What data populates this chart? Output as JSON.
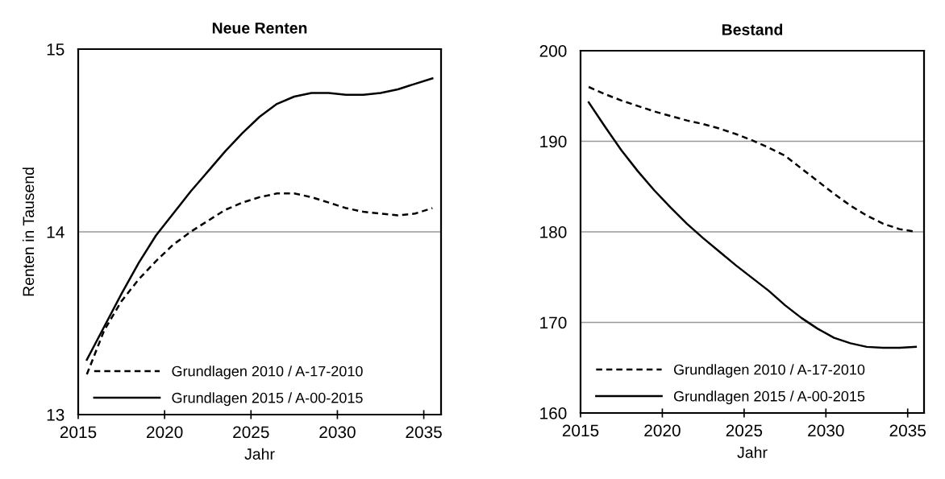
{
  "chart_data": [
    {
      "type": "line",
      "title": "Neue Renten",
      "xlabel": "Jahr",
      "ylabel": "Renten in Tausend",
      "x": [
        2015.5,
        2016.5,
        2017.5,
        2018.5,
        2019.5,
        2020.5,
        2021.5,
        2022.5,
        2023.5,
        2024.5,
        2025.5,
        2026.5,
        2027.5,
        2028.5,
        2029.5,
        2030.5,
        2031.5,
        2032.5,
        2033.5,
        2034.5,
        2035.5
      ],
      "series": [
        {
          "name": "Grundlagen 2010 / A-17-2010",
          "color": "#000000",
          "line_style": "dashed",
          "values": [
            13.22,
            13.46,
            13.62,
            13.74,
            13.84,
            13.93,
            14.0,
            14.06,
            14.12,
            14.16,
            14.19,
            14.21,
            14.21,
            14.19,
            14.16,
            14.13,
            14.11,
            14.1,
            14.09,
            14.1,
            14.13
          ]
        },
        {
          "name": "Grundlagen 2015 / A-00-2015",
          "color": "#000000",
          "line_style": "solid",
          "values": [
            13.3,
            13.48,
            13.66,
            13.83,
            13.98,
            14.1,
            14.22,
            14.33,
            14.44,
            14.54,
            14.63,
            14.7,
            14.74,
            14.76,
            14.76,
            14.75,
            14.75,
            14.76,
            14.78,
            14.81,
            14.84
          ]
        }
      ],
      "xlim": [
        2015,
        2036
      ],
      "xticks": [
        2015,
        2020,
        2025,
        2030,
        2035
      ],
      "ylim": [
        13,
        15
      ],
      "yticks": [
        13,
        14,
        15
      ],
      "grid": "y",
      "legend": "bottom left"
    },
    {
      "type": "line",
      "title": "Bestand",
      "xlabel": "Jahr",
      "x": [
        2015.5,
        2016.5,
        2017.5,
        2018.5,
        2019.5,
        2020.5,
        2021.5,
        2022.5,
        2023.5,
        2024.5,
        2025.5,
        2026.5,
        2027.5,
        2028.5,
        2029.5,
        2030.5,
        2031.5,
        2032.5,
        2033.5,
        2034.5,
        2035.5
      ],
      "series": [
        {
          "name": "Grundlagen 2010 / A-17-2010",
          "color": "#000000",
          "line_style": "dashed",
          "values": [
            196.0,
            195.2,
            194.5,
            193.9,
            193.3,
            192.8,
            192.3,
            191.9,
            191.4,
            190.8,
            190.1,
            189.3,
            188.4,
            187.0,
            185.6,
            184.2,
            182.9,
            181.8,
            180.9,
            180.3,
            180.0
          ]
        },
        {
          "name": "Grundlagen 2015 / A-00-2015",
          "color": "#000000",
          "line_style": "solid",
          "values": [
            194.3,
            191.6,
            189.0,
            186.7,
            184.6,
            182.7,
            180.9,
            179.3,
            177.8,
            176.3,
            174.9,
            173.5,
            171.9,
            170.5,
            169.3,
            168.3,
            167.7,
            167.3,
            167.2,
            167.2,
            167.3
          ]
        }
      ],
      "xlim": [
        2015,
        2036
      ],
      "xticks": [
        2015,
        2020,
        2025,
        2030,
        2035
      ],
      "ylim": [
        160,
        200
      ],
      "yticks": [
        160,
        170,
        180,
        190,
        200
      ],
      "grid": "y",
      "legend": "bottom left"
    }
  ]
}
